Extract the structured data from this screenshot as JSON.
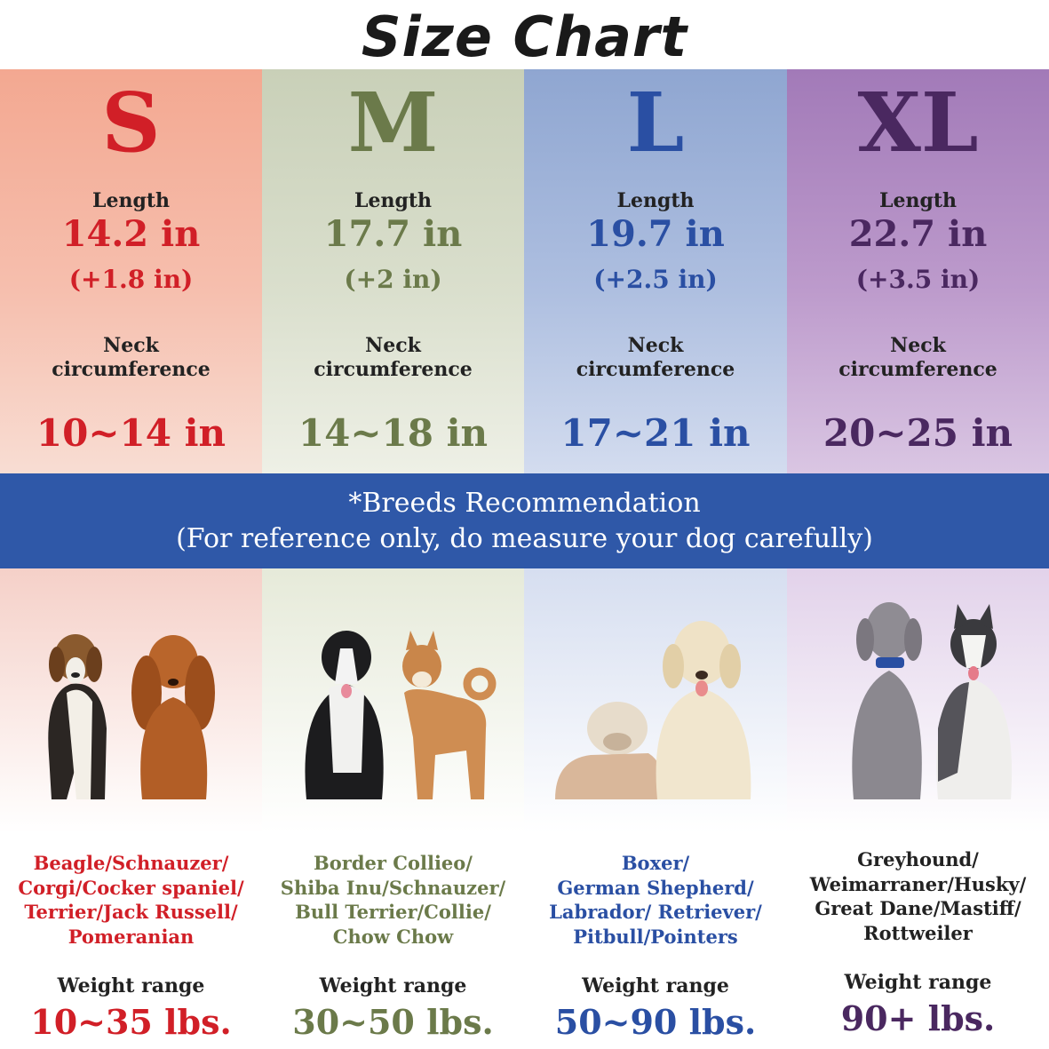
{
  "title": "Size Chart",
  "colors": {
    "s": "#d11f27",
    "m": "#6b7a4a",
    "l": "#2a4fa3",
    "xl": "#4a2860",
    "banner": "#2f58a8"
  },
  "length_label": "Length",
  "neck_label_line1": "Neck",
  "neck_label_line2": "circumference",
  "weight_label": "Weight range",
  "banner": {
    "line1": "*Breeds Recommendation",
    "line2": "(For reference only, do measure your dog carefully)"
  },
  "sizes": [
    {
      "size": "S",
      "length": "14.2 in",
      "extra": "(+1.8 in)",
      "neck": "10~14 in",
      "breeds": [
        "Beagle/Schnauzer/",
        "Corgi/Cocker spaniel/",
        "Terrier/Jack Russell/",
        "Pomeranian"
      ],
      "weight": "10~35 lbs.",
      "dogs": [
        "beagle-icon",
        "cocker-spaniel-icon"
      ]
    },
    {
      "size": "M",
      "length": "17.7 in",
      "extra": "(+2 in)",
      "neck": "14~18 in",
      "breeds": [
        "Border Collieo/",
        "Shiba Inu/Schnauzer/",
        "Bull Terrier/Collie/",
        "Chow Chow"
      ],
      "weight": "30~50 lbs.",
      "dogs": [
        "border-collie-icon",
        "shiba-inu-icon"
      ]
    },
    {
      "size": "L",
      "length": "19.7 in",
      "extra": "(+2.5 in)",
      "neck": "17~21 in",
      "breeds": [
        "Boxer/",
        "German Shepherd/",
        "Labrador/ Retriever/",
        "Pitbull/Pointers"
      ],
      "weight": "50~90 lbs.",
      "dogs": [
        "bulldog-icon",
        "golden-retriever-icon"
      ]
    },
    {
      "size": "XL",
      "length": "22.7 in",
      "extra": "(+3.5 in)",
      "neck": "20~25 in",
      "breeds": [
        "Greyhound/",
        "Weimarraner/Husky/",
        "Great Dane/Mastiff/",
        "Rottweiler"
      ],
      "weight": "90+ lbs.",
      "dogs": [
        "weimaraner-icon",
        "husky-icon"
      ]
    }
  ]
}
